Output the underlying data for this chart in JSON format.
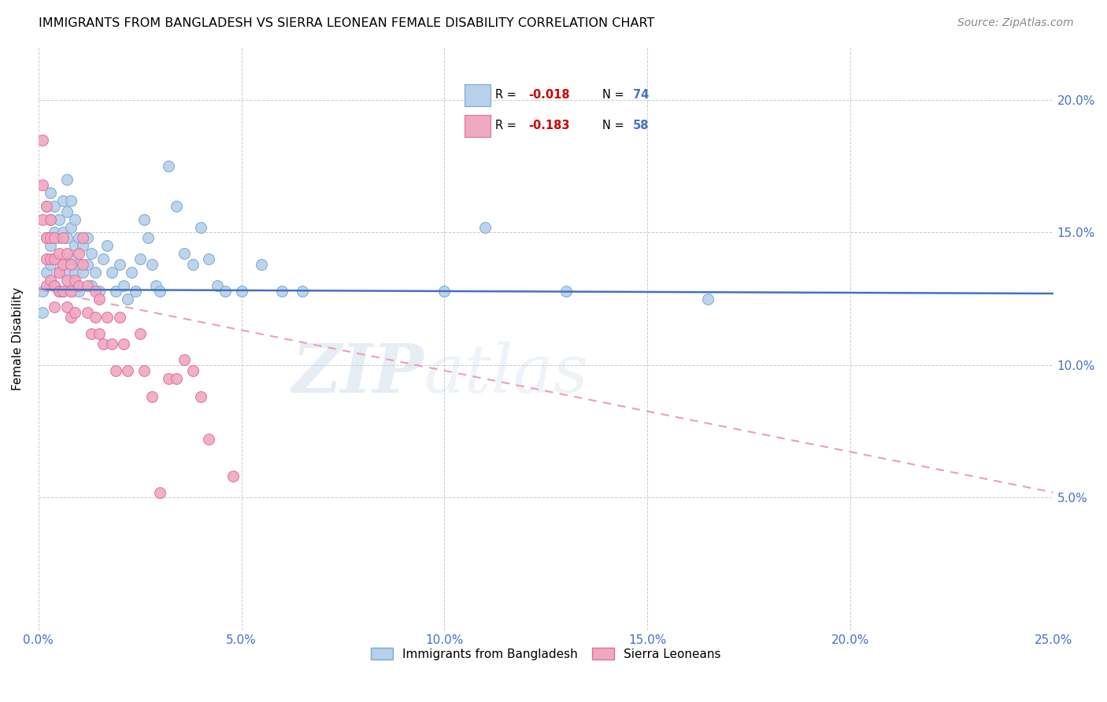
{
  "title": "IMMIGRANTS FROM BANGLADESH VS SIERRA LEONEAN FEMALE DISABILITY CORRELATION CHART",
  "source": "Source: ZipAtlas.com",
  "ylabel": "Female Disability",
  "xlim": [
    0.0,
    0.25
  ],
  "ylim": [
    0.0,
    0.22
  ],
  "x_ticks": [
    0.0,
    0.05,
    0.1,
    0.15,
    0.2,
    0.25
  ],
  "x_tick_labels": [
    "0.0%",
    "5.0%",
    "10.0%",
    "15.0%",
    "20.0%",
    "25.0%"
  ],
  "y_ticks": [
    0.05,
    0.1,
    0.15,
    0.2
  ],
  "y_tick_labels": [
    "5.0%",
    "10.0%",
    "15.0%",
    "20.0%"
  ],
  "color_blue": "#b8d0ea",
  "color_blue_edge": "#7aaad0",
  "color_pink": "#f0a8c0",
  "color_pink_edge": "#e070a0",
  "line_color_blue": "#4472c4",
  "line_color_pink": "#e8a0b8",
  "trendline_blue": [
    [
      0.0,
      0.1285
    ],
    [
      0.25,
      0.127
    ]
  ],
  "trendline_pink": [
    [
      0.0,
      0.1285
    ],
    [
      0.25,
      0.052
    ]
  ],
  "scatter_blue": [
    [
      0.001,
      0.128
    ],
    [
      0.001,
      0.12
    ],
    [
      0.002,
      0.16
    ],
    [
      0.002,
      0.148
    ],
    [
      0.002,
      0.135
    ],
    [
      0.003,
      0.165
    ],
    [
      0.003,
      0.155
    ],
    [
      0.003,
      0.145
    ],
    [
      0.003,
      0.138
    ],
    [
      0.004,
      0.16
    ],
    [
      0.004,
      0.15
    ],
    [
      0.004,
      0.14
    ],
    [
      0.004,
      0.13
    ],
    [
      0.005,
      0.155
    ],
    [
      0.005,
      0.148
    ],
    [
      0.005,
      0.135
    ],
    [
      0.005,
      0.128
    ],
    [
      0.006,
      0.162
    ],
    [
      0.006,
      0.15
    ],
    [
      0.006,
      0.138
    ],
    [
      0.006,
      0.128
    ],
    [
      0.007,
      0.17
    ],
    [
      0.007,
      0.158
    ],
    [
      0.007,
      0.148
    ],
    [
      0.007,
      0.135
    ],
    [
      0.008,
      0.162
    ],
    [
      0.008,
      0.152
    ],
    [
      0.008,
      0.14
    ],
    [
      0.008,
      0.128
    ],
    [
      0.009,
      0.155
    ],
    [
      0.009,
      0.145
    ],
    [
      0.009,
      0.135
    ],
    [
      0.01,
      0.148
    ],
    [
      0.01,
      0.138
    ],
    [
      0.01,
      0.128
    ],
    [
      0.011,
      0.145
    ],
    [
      0.011,
      0.135
    ],
    [
      0.012,
      0.148
    ],
    [
      0.012,
      0.138
    ],
    [
      0.013,
      0.142
    ],
    [
      0.013,
      0.13
    ],
    [
      0.014,
      0.135
    ],
    [
      0.015,
      0.128
    ],
    [
      0.016,
      0.14
    ],
    [
      0.017,
      0.145
    ],
    [
      0.018,
      0.135
    ],
    [
      0.019,
      0.128
    ],
    [
      0.02,
      0.138
    ],
    [
      0.021,
      0.13
    ],
    [
      0.022,
      0.125
    ],
    [
      0.023,
      0.135
    ],
    [
      0.024,
      0.128
    ],
    [
      0.025,
      0.14
    ],
    [
      0.026,
      0.155
    ],
    [
      0.027,
      0.148
    ],
    [
      0.028,
      0.138
    ],
    [
      0.029,
      0.13
    ],
    [
      0.03,
      0.128
    ],
    [
      0.032,
      0.175
    ],
    [
      0.034,
      0.16
    ],
    [
      0.036,
      0.142
    ],
    [
      0.038,
      0.138
    ],
    [
      0.04,
      0.152
    ],
    [
      0.042,
      0.14
    ],
    [
      0.044,
      0.13
    ],
    [
      0.046,
      0.128
    ],
    [
      0.05,
      0.128
    ],
    [
      0.055,
      0.138
    ],
    [
      0.06,
      0.128
    ],
    [
      0.065,
      0.128
    ],
    [
      0.1,
      0.128
    ],
    [
      0.11,
      0.152
    ],
    [
      0.13,
      0.128
    ],
    [
      0.165,
      0.125
    ]
  ],
  "scatter_pink": [
    [
      0.001,
      0.185
    ],
    [
      0.001,
      0.168
    ],
    [
      0.001,
      0.155
    ],
    [
      0.002,
      0.16
    ],
    [
      0.002,
      0.148
    ],
    [
      0.002,
      0.14
    ],
    [
      0.002,
      0.13
    ],
    [
      0.003,
      0.155
    ],
    [
      0.003,
      0.148
    ],
    [
      0.003,
      0.14
    ],
    [
      0.003,
      0.132
    ],
    [
      0.004,
      0.148
    ],
    [
      0.004,
      0.14
    ],
    [
      0.004,
      0.13
    ],
    [
      0.004,
      0.122
    ],
    [
      0.005,
      0.142
    ],
    [
      0.005,
      0.135
    ],
    [
      0.005,
      0.128
    ],
    [
      0.006,
      0.148
    ],
    [
      0.006,
      0.138
    ],
    [
      0.006,
      0.128
    ],
    [
      0.007,
      0.142
    ],
    [
      0.007,
      0.132
    ],
    [
      0.007,
      0.122
    ],
    [
      0.008,
      0.138
    ],
    [
      0.008,
      0.128
    ],
    [
      0.008,
      0.118
    ],
    [
      0.009,
      0.132
    ],
    [
      0.009,
      0.12
    ],
    [
      0.01,
      0.142
    ],
    [
      0.01,
      0.13
    ],
    [
      0.011,
      0.148
    ],
    [
      0.011,
      0.138
    ],
    [
      0.012,
      0.13
    ],
    [
      0.012,
      0.12
    ],
    [
      0.013,
      0.112
    ],
    [
      0.014,
      0.128
    ],
    [
      0.014,
      0.118
    ],
    [
      0.015,
      0.125
    ],
    [
      0.015,
      0.112
    ],
    [
      0.016,
      0.108
    ],
    [
      0.017,
      0.118
    ],
    [
      0.018,
      0.108
    ],
    [
      0.019,
      0.098
    ],
    [
      0.02,
      0.118
    ],
    [
      0.021,
      0.108
    ],
    [
      0.022,
      0.098
    ],
    [
      0.025,
      0.112
    ],
    [
      0.026,
      0.098
    ],
    [
      0.028,
      0.088
    ],
    [
      0.03,
      0.052
    ],
    [
      0.032,
      0.095
    ],
    [
      0.034,
      0.095
    ],
    [
      0.036,
      0.102
    ],
    [
      0.038,
      0.098
    ],
    [
      0.04,
      0.088
    ],
    [
      0.042,
      0.072
    ],
    [
      0.048,
      0.058
    ]
  ]
}
